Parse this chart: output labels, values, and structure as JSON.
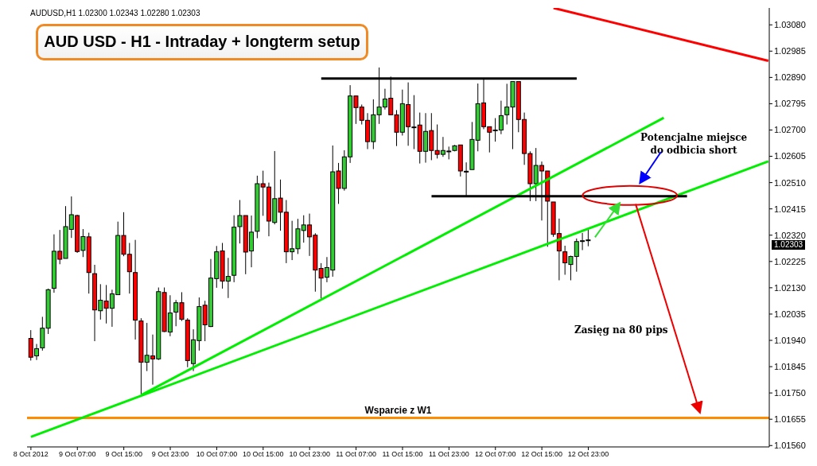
{
  "chart_data": {
    "type": "candlestick",
    "title": "AUD USD - H1 - Intraday + longterm setup",
    "subtitle": "AUDUSD,H1  1.02300 1.02343 1.02280 1.02303",
    "x": [
      "2012-10-08T23:00",
      "2012-10-09T00:00",
      "2012-10-09T01:00",
      "2012-10-09T02:00",
      "2012-10-09T03:00",
      "2012-10-09T04:00",
      "2012-10-09T05:00",
      "2012-10-09T06:00",
      "2012-10-09T07:00",
      "2012-10-09T08:00",
      "2012-10-09T09:00",
      "2012-10-09T10:00",
      "2012-10-09T11:00",
      "2012-10-09T12:00",
      "2012-10-09T13:00",
      "2012-10-09T14:00",
      "2012-10-09T15:00",
      "2012-10-09T16:00",
      "2012-10-09T17:00",
      "2012-10-09T18:00",
      "2012-10-09T19:00",
      "2012-10-09T20:00",
      "2012-10-09T21:00",
      "2012-10-09T22:00",
      "2012-10-09T23:00",
      "2012-10-10T00:00",
      "2012-10-10T01:00",
      "2012-10-10T02:00",
      "2012-10-10T03:00",
      "2012-10-10T04:00",
      "2012-10-10T05:00",
      "2012-10-10T06:00",
      "2012-10-10T07:00",
      "2012-10-10T08:00",
      "2012-10-10T09:00",
      "2012-10-10T10:00",
      "2012-10-10T11:00",
      "2012-10-10T12:00",
      "2012-10-10T13:00",
      "2012-10-10T14:00",
      "2012-10-10T15:00",
      "2012-10-10T16:00",
      "2012-10-10T17:00",
      "2012-10-10T18:00",
      "2012-10-10T19:00",
      "2012-10-10T20:00",
      "2012-10-10T21:00",
      "2012-10-10T22:00",
      "2012-10-10T23:00",
      "2012-10-11T00:00",
      "2012-10-11T01:00",
      "2012-10-11T02:00",
      "2012-10-11T03:00",
      "2012-10-11T04:00",
      "2012-10-11T05:00",
      "2012-10-11T06:00",
      "2012-10-11T07:00",
      "2012-10-11T08:00",
      "2012-10-11T09:00",
      "2012-10-11T10:00",
      "2012-10-11T11:00",
      "2012-10-11T12:00",
      "2012-10-11T13:00",
      "2012-10-11T14:00",
      "2012-10-11T15:00",
      "2012-10-11T16:00",
      "2012-10-11T17:00",
      "2012-10-11T18:00",
      "2012-10-11T19:00",
      "2012-10-11T20:00",
      "2012-10-11T21:00",
      "2012-10-11T22:00",
      "2012-10-11T23:00",
      "2012-10-12T00:00",
      "2012-10-12T01:00",
      "2012-10-12T02:00",
      "2012-10-12T03:00",
      "2012-10-12T04:00",
      "2012-10-12T05:00",
      "2012-10-12T06:00",
      "2012-10-12T07:00",
      "2012-10-12T08:00",
      "2012-10-12T09:00",
      "2012-10-12T10:00",
      "2012-10-12T11:00",
      "2012-10-12T12:00",
      "2012-10-12T13:00",
      "2012-10-12T14:00",
      "2012-10-12T15:00",
      "2012-10-12T16:00",
      "2012-10-12T17:00",
      "2012-10-12T18:00",
      "2012-10-12T19:00",
      "2012-10-12T20:00",
      "2012-10-12T21:00",
      "2012-10-12T22:00",
      "2012-10-12T23:00"
    ],
    "ohlc": [
      [
        1.01947,
        1.01977,
        1.01867,
        1.01879
      ],
      [
        1.01884,
        1.01927,
        1.01869,
        1.0191
      ],
      [
        1.01913,
        1.02025,
        1.01903,
        1.01984
      ],
      [
        1.01984,
        1.02127,
        1.01963,
        1.02123
      ],
      [
        1.02128,
        1.02323,
        1.02112,
        1.02262
      ],
      [
        1.02262,
        1.02339,
        1.02215,
        1.02233
      ],
      [
        1.02236,
        1.02425,
        1.02236,
        1.02351
      ],
      [
        1.02341,
        1.0246,
        1.0231,
        1.02394
      ],
      [
        1.02391,
        1.02394,
        1.02256,
        1.02261
      ],
      [
        1.02265,
        1.02342,
        1.02241,
        1.02315
      ],
      [
        1.02314,
        1.02329,
        1.02109,
        1.02185
      ],
      [
        1.02181,
        1.02213,
        1.01937,
        1.0205
      ],
      [
        1.02047,
        1.02143,
        1.02015,
        1.02085
      ],
      [
        1.02082,
        1.0214,
        1.02001,
        1.02056
      ],
      [
        1.02056,
        1.02123,
        1.01989,
        1.02108
      ],
      [
        1.02105,
        1.02369,
        1.02105,
        1.02319
      ],
      [
        1.02319,
        1.02403,
        1.02244,
        1.02251
      ],
      [
        1.02251,
        1.02292,
        1.02109,
        1.02188
      ],
      [
        1.02185,
        1.02303,
        1.01943,
        1.02013
      ],
      [
        1.0201,
        1.0202,
        1.01743,
        1.01861
      ],
      [
        1.01861,
        1.02003,
        1.01829,
        1.01886
      ],
      [
        1.01884,
        1.01961,
        1.0178,
        1.01873
      ],
      [
        1.01873,
        1.02131,
        1.01869,
        1.02116
      ],
      [
        1.02113,
        1.02131,
        1.0197,
        1.01972
      ],
      [
        1.0197,
        1.02103,
        1.01955,
        1.02039
      ],
      [
        1.02042,
        1.02086,
        1.01991,
        1.02076
      ],
      [
        1.02076,
        1.02114,
        1.0201,
        1.02016
      ],
      [
        1.02013,
        1.0202,
        1.01843,
        1.01867
      ],
      [
        1.01856,
        1.0198,
        1.01829,
        1.01942
      ],
      [
        1.01939,
        1.02095,
        1.01903,
        1.02062
      ],
      [
        1.02067,
        1.02083,
        1.01937,
        1.01996
      ],
      [
        1.0199,
        1.02234,
        1.01988,
        1.02165
      ],
      [
        1.02163,
        1.02281,
        1.0213,
        1.0226
      ],
      [
        1.02263,
        1.02292,
        1.02127,
        1.02154
      ],
      [
        1.02154,
        1.02238,
        1.02093,
        1.02171
      ],
      [
        1.02175,
        1.02392,
        1.0215,
        1.02349
      ],
      [
        1.02351,
        1.02447,
        1.0229,
        1.02391
      ],
      [
        1.02391,
        1.02391,
        1.02179,
        1.02259
      ],
      [
        1.02263,
        1.02391,
        1.02204,
        1.02331
      ],
      [
        1.02334,
        1.02535,
        1.02309,
        1.02506
      ],
      [
        1.02506,
        1.02553,
        1.0239,
        1.02494
      ],
      [
        1.02494,
        1.0251,
        1.02316,
        1.02371
      ],
      [
        1.02366,
        1.02624,
        1.02359,
        1.02452
      ],
      [
        1.02454,
        1.02521,
        1.02336,
        1.02403
      ],
      [
        1.02403,
        1.02447,
        1.02219,
        1.0226
      ],
      [
        1.0226,
        1.02372,
        1.0223,
        1.02271
      ],
      [
        1.02271,
        1.02379,
        1.02252,
        1.02343
      ],
      [
        1.02337,
        1.02392,
        1.02293,
        1.02357
      ],
      [
        1.02357,
        1.02398,
        1.02245,
        1.02314
      ],
      [
        1.0232,
        1.02327,
        1.02116,
        1.02194
      ],
      [
        1.022,
        1.02219,
        1.02091,
        1.02165
      ],
      [
        1.02168,
        1.02241,
        1.0215,
        1.02203
      ],
      [
        1.02194,
        1.02644,
        1.0217,
        1.02549
      ],
      [
        1.02552,
        1.02581,
        1.02433,
        1.02489
      ],
      [
        1.02489,
        1.02627,
        1.02481,
        1.02603
      ],
      [
        1.02603,
        1.02862,
        1.02581,
        1.02823
      ],
      [
        1.02823,
        1.02823,
        1.02722,
        1.02781
      ],
      [
        1.02783,
        1.02792,
        1.0272,
        1.02735
      ],
      [
        1.02735,
        1.02761,
        1.02631,
        1.02658
      ],
      [
        1.02658,
        1.02811,
        1.02631,
        1.02755
      ],
      [
        1.02755,
        1.02926,
        1.02722,
        1.02783
      ],
      [
        1.02783,
        1.02849,
        1.02774,
        1.02812
      ],
      [
        1.02815,
        1.02893,
        1.02755,
        1.02755
      ],
      [
        1.02755,
        1.02772,
        1.02642,
        1.02692
      ],
      [
        1.02692,
        1.02846,
        1.0268,
        1.02795
      ],
      [
        1.02792,
        1.02872,
        1.02643,
        1.02712
      ],
      [
        1.02711,
        1.02826,
        1.02631,
        1.02709
      ],
      [
        1.02718,
        1.02763,
        1.02579,
        1.02623
      ],
      [
        1.02623,
        1.02761,
        1.02582,
        1.02695
      ],
      [
        1.02698,
        1.02761,
        1.02591,
        1.02626
      ],
      [
        1.02626,
        1.0272,
        1.02597,
        1.02612
      ],
      [
        1.02612,
        1.02675,
        1.02603,
        1.02626
      ],
      [
        1.02624,
        1.0264,
        1.02594,
        1.02622
      ],
      [
        1.02626,
        1.02646,
        1.02623,
        1.02643
      ],
      [
        1.02646,
        1.02646,
        1.02532,
        1.02552
      ],
      [
        1.02551,
        1.02583,
        1.02462,
        1.0255
      ],
      [
        1.02557,
        1.02729,
        1.02557,
        1.02666
      ],
      [
        1.02663,
        1.02868,
        1.02623,
        1.02795
      ],
      [
        1.02798,
        1.02884,
        1.02703,
        1.02712
      ],
      [
        1.02712,
        1.02712,
        1.02619,
        1.02692
      ],
      [
        1.02698,
        1.02743,
        1.02658,
        1.027
      ],
      [
        1.027,
        1.02806,
        1.02685,
        1.02752
      ],
      [
        1.02755,
        1.02867,
        1.0272,
        1.02783
      ],
      [
        1.02783,
        1.02875,
        1.02631,
        1.02875
      ],
      [
        1.02875,
        1.02875,
        1.02692,
        1.02738
      ],
      [
        1.02738,
        1.02763,
        1.02574,
        1.02615
      ],
      [
        1.02615,
        1.02623,
        1.02443,
        1.02506
      ],
      [
        1.02506,
        1.02635,
        1.02443,
        1.02572
      ],
      [
        1.02572,
        1.02586,
        1.02373,
        1.02552
      ],
      [
        1.02552,
        1.02552,
        1.02278,
        1.02443
      ],
      [
        1.0244,
        1.0244,
        1.02314,
        1.02323
      ],
      [
        1.02326,
        1.0238,
        1.02157,
        1.02263
      ],
      [
        1.0226,
        1.02282,
        1.02177,
        1.0222
      ],
      [
        1.02214,
        1.02246,
        1.02157,
        1.02243
      ],
      [
        1.02243,
        1.02308,
        1.02188,
        1.02297
      ],
      [
        1.02299,
        1.02328,
        1.02266,
        1.023
      ],
      [
        1.023,
        1.02343,
        1.0228,
        1.02303
      ]
    ],
    "series": [
      {
        "type": "line",
        "color": "#ff0000",
        "x": [
          "2012-10-12T17:00",
          "2012-10-14T06:00"
        ],
        "values": [
          1.03141,
          1.0295
        ]
      },
      {
        "type": "line",
        "color": "#00ee00",
        "x": [
          "2012-10-08T23:00",
          "2012-10-14T06:00"
        ],
        "values": [
          1.01591,
          1.02587
        ]
      },
      {
        "type": "line",
        "color": "#00ee00",
        "x": [
          "2012-10-09T18:00",
          "2012-10-13T12:00"
        ],
        "values": [
          1.01742,
          1.02744
        ]
      },
      {
        "type": "line",
        "color": "#000000",
        "x": [
          "2012-10-11T01:00",
          "2012-10-12T21:00"
        ],
        "values": [
          1.02886,
          1.02886
        ]
      },
      {
        "type": "line",
        "color": "#000000",
        "x": [
          "2012-10-11T20:00",
          "2012-10-13T16:00"
        ],
        "values": [
          1.02461,
          1.02461
        ]
      }
    ],
    "ref_lines": [
      {
        "axis": "y",
        "value": 1.0166,
        "label": "Wsparcie z W1",
        "color": "#ff8c00"
      }
    ],
    "annotations": [
      "Potencjalne miejsce do odbicia short",
      "Zasięg na 80 pips",
      "1.02303"
    ],
    "xlim": [
      "2012-10-08T22:20",
      "2012-10-14T06:10"
    ],
    "xticks": [
      {
        "value": "2012-10-08T23:00",
        "label": "8 Oct 2012"
      },
      {
        "value": "2012-10-09T07:00",
        "label": "9 Oct 07:00"
      },
      {
        "value": "2012-10-09T15:00",
        "label": "9 Oct 15:00"
      },
      {
        "value": "2012-10-09T23:00",
        "label": "9 Oct 23:00"
      },
      {
        "value": "2012-10-10T07:00",
        "label": "10 Oct 07:00"
      },
      {
        "value": "2012-10-10T15:00",
        "label": "10 Oct 15:00"
      },
      {
        "value": "2012-10-10T23:00",
        "label": "10 Oct 23:00"
      },
      {
        "value": "2012-10-11T07:00",
        "label": "11 Oct 07:00"
      },
      {
        "value": "2012-10-11T15:00",
        "label": "11 Oct 15:00"
      },
      {
        "value": "2012-10-11T23:00",
        "label": "11 Oct 23:00"
      },
      {
        "value": "2012-10-12T07:00",
        "label": "12 Oct 07:00"
      },
      {
        "value": "2012-10-12T15:00",
        "label": "12 Oct 15:00"
      },
      {
        "value": "2012-10-12T23:00",
        "label": "12 Oct 23:00"
      }
    ],
    "ylim": [
      1.01555,
      1.03141
    ],
    "yticks": [
      {
        "value": 1.0308,
        "label": "1.03080"
      },
      {
        "value": 1.02985,
        "label": "1.02985"
      },
      {
        "value": 1.0289,
        "label": "1.02890"
      },
      {
        "value": 1.02795,
        "label": "1.02795"
      },
      {
        "value": 1.027,
        "label": "1.02700"
      },
      {
        "value": 1.02605,
        "label": "1.02605"
      },
      {
        "value": 1.0251,
        "label": "1.02510"
      },
      {
        "value": 1.02415,
        "label": "1.02415"
      },
      {
        "value": 1.0232,
        "label": "1.02320"
      },
      {
        "value": 1.02225,
        "label": "1.02225"
      },
      {
        "value": 1.0213,
        "label": "1.02130"
      },
      {
        "value": 1.02035,
        "label": "1.02035"
      },
      {
        "value": 1.0194,
        "label": "1.01940"
      },
      {
        "value": 1.01845,
        "label": "1.01845"
      },
      {
        "value": 1.0175,
        "label": "1.01750"
      },
      {
        "value": 1.01655,
        "label": "1.01655"
      },
      {
        "value": 1.0156,
        "label": "1.01560"
      }
    ]
  }
}
